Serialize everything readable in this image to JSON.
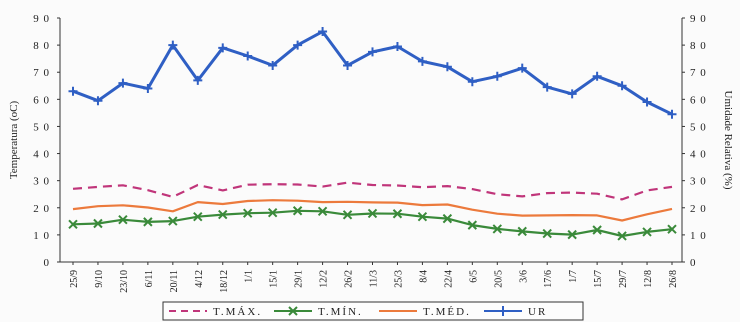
{
  "chart_data": {
    "type": "line",
    "ylabel_left": "Temperatura (oC)",
    "ylabel_right": "Umidade Relativa (%)",
    "ylim": [
      0,
      90
    ],
    "yticks": [
      "0",
      "10",
      "20",
      "30",
      "40",
      "50",
      "60",
      "70",
      "80",
      "90"
    ],
    "grid": false,
    "legend_position": "bottom",
    "categories": [
      "25/9",
      "9/10",
      "23/10",
      "6/11",
      "20/11",
      "4/12",
      "18/12",
      "1/1",
      "15/1",
      "29/1",
      "12/2",
      "26/2",
      "11/3",
      "25/3",
      "8/4",
      "22/4",
      "6/5",
      "20/5",
      "3/6",
      "17/6",
      "1/7",
      "15/7",
      "29/7",
      "12/8",
      "26/8"
    ],
    "series": [
      {
        "name": "T.MÁX.",
        "axis": "left",
        "color": "#c0357a",
        "dash": "dashed",
        "marker": "none",
        "values": [
          27,
          27.7,
          28.3,
          26.5,
          24,
          28.4,
          26.4,
          28.5,
          28.7,
          28.6,
          27.8,
          29.3,
          28.4,
          28.2,
          27.6,
          28,
          26.9,
          25,
          24.2,
          25.4,
          25.6,
          25.2,
          23.1,
          26.4,
          27.7
        ]
      },
      {
        "name": "T.MÍN.",
        "axis": "left",
        "color": "#3a8a3a",
        "dash": "solid",
        "marker": "x",
        "values": [
          13.9,
          14.2,
          15.6,
          14.8,
          15.1,
          16.7,
          17.5,
          18,
          18.2,
          18.9,
          18.7,
          17.4,
          17.9,
          17.8,
          16.7,
          16,
          13.6,
          12.2,
          11.3,
          10.5,
          10.1,
          11.8,
          9.6,
          11.1,
          12.1
        ]
      },
      {
        "name": "T.MÉD.",
        "axis": "left",
        "color": "#ec7a3c",
        "dash": "solid",
        "marker": "none",
        "values": [
          19.5,
          20.6,
          20.9,
          20.1,
          18.7,
          22.1,
          21.4,
          22.5,
          22.8,
          22.6,
          22.1,
          22.2,
          22,
          21.9,
          21,
          21.2,
          19.3,
          17.8,
          17.1,
          17.2,
          17.3,
          17.2,
          15.3,
          17.6,
          19.6
        ]
      },
      {
        "name": "UR",
        "axis": "right",
        "color": "#2f5fc4",
        "dash": "solid",
        "marker": "plus",
        "values": [
          63,
          59.5,
          66,
          64,
          80,
          67,
          79,
          76,
          72.5,
          80,
          85,
          72.5,
          77.5,
          79.5,
          74,
          72,
          66.5,
          68.5,
          71.5,
          64.5,
          62,
          68.5,
          65,
          59,
          54.5
        ]
      }
    ]
  }
}
